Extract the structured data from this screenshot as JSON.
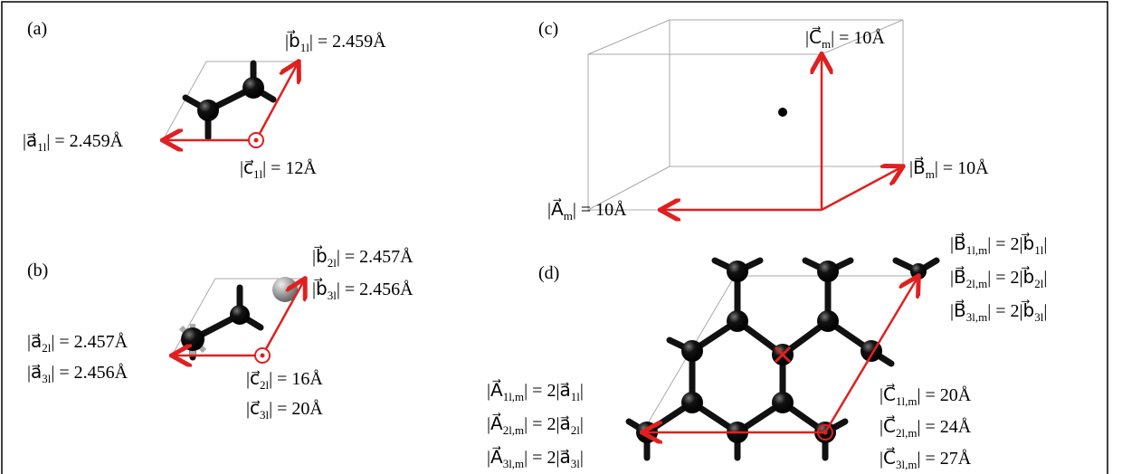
{
  "panels": [
    {
      "label": "(a)",
      "labels": [
        [
          "|b⃗",
          "1l",
          "| = 2.459Å"
        ],
        [
          "|a⃗",
          "1l",
          "| = 2.459Å"
        ],
        [
          "|c⃗",
          "1l",
          "| = 12Å"
        ]
      ]
    },
    {
      "label": "(b)",
      "labels": [
        [
          "|b⃗",
          "2l",
          "| = 2.457Å"
        ],
        [
          "|b⃗",
          "3l",
          "| = 2.456Å"
        ],
        [
          "|a⃗",
          "2l",
          "| = 2.457Å"
        ],
        [
          "|a⃗",
          "3l",
          "| = 2.456Å"
        ],
        [
          "|c⃗",
          "2l",
          "| = 16Å"
        ],
        [
          "|c⃗",
          "3l",
          "| = 20Å"
        ]
      ]
    },
    {
      "label": "(c)",
      "labels": [
        [
          "|C⃗",
          "m",
          "| = 10Å"
        ],
        [
          "|B⃗",
          "m",
          "| = 10Å"
        ],
        [
          "|A⃗",
          "m",
          "| = 10Å"
        ]
      ]
    },
    {
      "label": "(d)",
      "labels": [
        [
          "|B⃗",
          "1l,m",
          "| = 2|b⃗",
          "1l",
          "|"
        ],
        [
          "|B⃗",
          "2l,m",
          "| = 2|b⃗",
          "2l",
          "|"
        ],
        [
          "|B⃗",
          "3l,m",
          "| = 2|b⃗",
          "3l",
          "|"
        ],
        [
          "|A⃗",
          "1l,m",
          "| = 2|a⃗",
          "1l",
          "|"
        ],
        [
          "|A⃗",
          "2l,m",
          "| = 2|a⃗",
          "2l",
          "|"
        ],
        [
          "|A⃗",
          "3l,m",
          "| = 2|a⃗",
          "3l",
          "|"
        ],
        [
          "|C⃗",
          "1l,m",
          "| = 20Å"
        ],
        [
          "|C⃗",
          "2l,m",
          "| = 24Å"
        ],
        [
          "|C⃗",
          "3l,m",
          "| = 27Å"
        ]
      ]
    }
  ]
}
